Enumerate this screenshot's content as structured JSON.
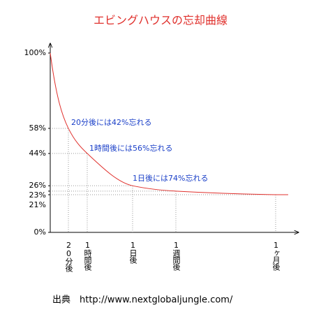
{
  "chart_data": {
    "type": "line",
    "title": "エビングハウスの忘却曲線",
    "categories": [
      null,
      "20分後",
      "1時間後",
      "1日後",
      "1週間後",
      "1ヶ月後"
    ],
    "values": [
      100,
      58,
      44,
      26,
      23,
      21
    ],
    "color": "#e0302c",
    "ylim": [
      0,
      100
    ],
    "yticks": [
      {
        "value": 0,
        "label": "0%"
      },
      {
        "value": 21,
        "label": "21%"
      },
      {
        "value": 23,
        "label": "23%"
      },
      {
        "value": 26,
        "label": "26%"
      },
      {
        "value": 44,
        "label": "44%"
      },
      {
        "value": 58,
        "label": "58%"
      },
      {
        "value": 100,
        "label": "100%"
      }
    ],
    "annotations": [
      "20分後には42%忘れる",
      "1時間後には56%忘れる",
      "1日後には74%忘れる"
    ],
    "source": "出典　http://www.nextglobaljungle.com/"
  }
}
